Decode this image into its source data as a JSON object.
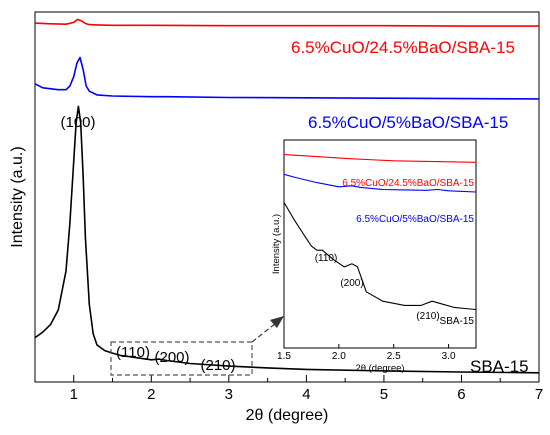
{
  "chart_data": {
    "type": "line",
    "xlabel": "2θ (degree)",
    "ylabel": "Intensity (a.u.)",
    "xlim": [
      0.5,
      7
    ],
    "xticks": [
      "1",
      "2",
      "3",
      "4",
      "5",
      "6",
      "7"
    ],
    "grid": false,
    "series": [
      {
        "name": "6.5%CuO/24.5%BaO/SBA-15",
        "color": "#ff0000",
        "x": [
          0.5,
          0.7,
          0.9,
          1.0,
          1.05,
          1.1,
          1.15,
          1.2,
          1.3,
          1.5,
          2.0,
          3.0,
          4.0,
          5.0,
          6.0,
          7.0
        ],
        "y": [
          0.97,
          0.968,
          0.967,
          0.972,
          0.98,
          0.976,
          0.969,
          0.966,
          0.965,
          0.964,
          0.964,
          0.963,
          0.963,
          0.963,
          0.962,
          0.962
        ]
      },
      {
        "name": "6.5%CuO/5%BaO/SBA-15",
        "color": "#0000ff",
        "x": [
          0.5,
          0.6,
          0.8,
          0.9,
          0.95,
          1.0,
          1.04,
          1.08,
          1.12,
          1.16,
          1.2,
          1.3,
          1.5,
          2.0,
          2.2,
          3.0,
          4.0,
          5.0,
          6.0,
          7.0
        ],
        "y": [
          0.806,
          0.795,
          0.79,
          0.79,
          0.8,
          0.826,
          0.862,
          0.877,
          0.845,
          0.8,
          0.786,
          0.776,
          0.773,
          0.771,
          0.771,
          0.769,
          0.768,
          0.767,
          0.766,
          0.765
        ]
      },
      {
        "name": "SBA-15",
        "color": "#000000",
        "x": [
          0.5,
          0.6,
          0.7,
          0.8,
          0.9,
          0.95,
          1.0,
          1.03,
          1.06,
          1.09,
          1.12,
          1.15,
          1.2,
          1.25,
          1.3,
          1.4,
          1.5,
          1.6,
          1.8,
          2.0,
          2.1,
          2.2,
          2.5,
          3.0,
          3.5,
          4.0,
          5.0,
          6.0,
          7.0
        ],
        "y": [
          0.12,
          0.135,
          0.155,
          0.195,
          0.3,
          0.43,
          0.6,
          0.7,
          0.745,
          0.7,
          0.56,
          0.39,
          0.21,
          0.13,
          0.1,
          0.085,
          0.078,
          0.072,
          0.066,
          0.06,
          0.062,
          0.058,
          0.05,
          0.043,
          0.038,
          0.034,
          0.03,
          0.027,
          0.025
        ]
      }
    ],
    "annotations": {
      "peak_100": "(100)",
      "peak_110": "(110)",
      "peak_200": "(200)",
      "peak_210": "(210)"
    },
    "inset": {
      "type": "line",
      "xlabel": "2θ (degree)",
      "ylabel": "Intensity (a.u.)",
      "xlim": [
        1.5,
        3.25
      ],
      "xticks": [
        "1.5",
        "2.0",
        "2.5",
        "3.0"
      ],
      "series": [
        {
          "name": "6.5%CuO/24.5%BaO/SBA-15",
          "color": "#ff0000",
          "x": [
            1.5,
            1.8,
            2.1,
            2.5,
            3.0,
            3.25
          ],
          "y": [
            0.93,
            0.92,
            0.91,
            0.9,
            0.895,
            0.893
          ]
        },
        {
          "name": "6.5%CuO/5%BaO/SBA-15",
          "color": "#0000ff",
          "x": [
            1.5,
            1.6,
            1.8,
            2.0,
            2.12,
            2.2,
            2.4,
            2.6,
            2.8,
            2.9,
            3.0,
            3.25
          ],
          "y": [
            0.835,
            0.82,
            0.795,
            0.775,
            0.78,
            0.772,
            0.762,
            0.76,
            0.758,
            0.762,
            0.756,
            0.75
          ]
        },
        {
          "name": "SBA-15",
          "color": "#000000",
          "x": [
            1.5,
            1.6,
            1.7,
            1.75,
            1.8,
            1.85,
            1.95,
            2.05,
            2.12,
            2.17,
            2.25,
            2.4,
            2.6,
            2.75,
            2.85,
            2.95,
            3.05,
            3.15,
            3.25
          ],
          "y": [
            0.7,
            0.61,
            0.53,
            0.49,
            0.47,
            0.47,
            0.425,
            0.39,
            0.405,
            0.39,
            0.27,
            0.225,
            0.205,
            0.205,
            0.225,
            0.21,
            0.195,
            0.19,
            0.185
          ]
        }
      ],
      "annotations": {
        "peak_110": "(110)",
        "peak_200": "(200)",
        "peak_210": "(210)"
      }
    }
  }
}
